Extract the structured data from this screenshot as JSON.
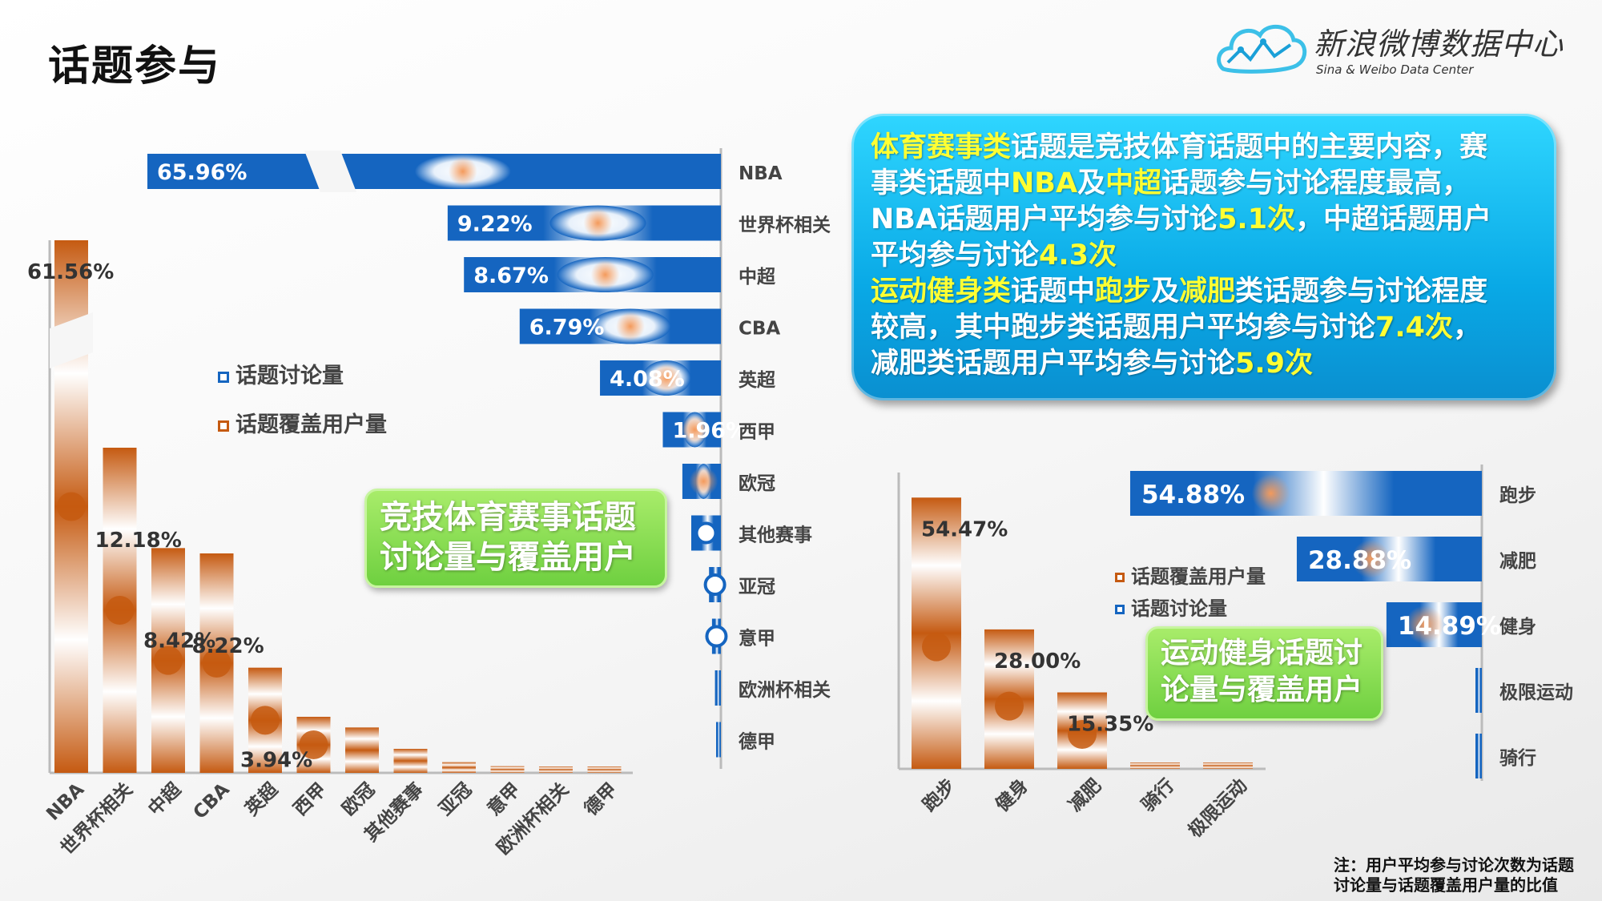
{
  "header": {
    "title": "话题参与"
  },
  "logo": {
    "main": "新浪微博数据中心",
    "sub": "Sina & Weibo Data Center"
  },
  "info_box": {
    "lines": [
      [
        {
          "t": "体育赛事类",
          "hl": true
        },
        {
          "t": "话题是竞技体育话题中的主要内容，赛",
          "hl": false
        }
      ],
      [
        {
          "t": "事类话题中",
          "hl": false
        },
        {
          "t": "NBA",
          "hl": true
        },
        {
          "t": "及",
          "hl": false
        },
        {
          "t": "中超",
          "hl": true
        },
        {
          "t": "话题参与讨论程度最高，",
          "hl": false
        }
      ],
      [
        {
          "t": "NBA话题用户平均参与讨论",
          "hl": false
        },
        {
          "t": "5.1次",
          "hl": true
        },
        {
          "t": "，中超话题用户",
          "hl": false
        }
      ],
      [
        {
          "t": "平均参与讨论",
          "hl": false
        },
        {
          "t": "4.3次",
          "hl": true
        }
      ],
      [
        {
          "t": "运动健身类",
          "hl": true
        },
        {
          "t": "话题中",
          "hl": false
        },
        {
          "t": "跑步",
          "hl": true
        },
        {
          "t": "及",
          "hl": false
        },
        {
          "t": "减肥",
          "hl": true
        },
        {
          "t": "类话题参与讨论程度",
          "hl": false
        }
      ],
      [
        {
          "t": "较高，其中跑步类话题用户平均参与讨论",
          "hl": false
        },
        {
          "t": "7.4次",
          "hl": true
        },
        {
          "t": "，",
          "hl": false
        }
      ],
      [
        {
          "t": "减肥类话题用户平均参与讨论",
          "hl": false
        },
        {
          "t": "5.9次",
          "hl": true
        }
      ]
    ]
  },
  "labels": {
    "left_box": [
      "竞技体育赛事话题",
      "讨论量与覆盖用户"
    ],
    "right_box": [
      "运动健身话题讨",
      "论量与覆盖用户"
    ]
  },
  "legend_left": {
    "discussion": "话题讨论量",
    "coverage": "话题覆盖用户量"
  },
  "legend_right": {
    "coverage": "话题覆盖用户量",
    "discussion": "话题讨论量"
  },
  "colors": {
    "discussion": "#1565c0",
    "coverage": "#c55a11",
    "highlight": "#ffff33"
  },
  "note": [
    "注：用户平均参与讨论次数为话题",
    "讨论量与话题覆盖用户量的比值"
  ],
  "chart_data": [
    {
      "type": "bar",
      "orientation": "horizontal",
      "series_name": "话题讨论量",
      "categories": [
        "NBA",
        "世界杯相关",
        "中超",
        "CBA",
        "英超",
        "西甲",
        "欧冠",
        "其他赛事",
        "亚冠",
        "意甲",
        "欧洲杯相关",
        "德甲"
      ],
      "values": [
        65.96,
        9.22,
        8.67,
        6.79,
        4.08,
        1.96,
        1.3,
        1.0,
        0.4,
        0.3,
        0.2,
        0.15
      ],
      "data_labels": [
        "65.96%",
        "9.22%",
        "8.67%",
        "6.79%",
        "4.08%",
        "1.96%",
        "",
        "",
        "",
        "",
        "",
        ""
      ],
      "axis_break": true
    },
    {
      "type": "bar",
      "orientation": "vertical",
      "series_name": "话题覆盖用户量",
      "categories": [
        "NBA",
        "世界杯相关",
        "中超",
        "CBA",
        "英超",
        "西甲",
        "欧冠",
        "其他赛事",
        "亚冠",
        "意甲",
        "欧洲杯相关",
        "德甲"
      ],
      "values": [
        61.56,
        12.18,
        8.42,
        8.22,
        3.94,
        2.1,
        1.7,
        0.9,
        0.4,
        0.25,
        0.2,
        0.15
      ],
      "data_labels": [
        "61.56%",
        "12.18%",
        "8.42%",
        "8.22%",
        "3.94%",
        "",
        "",
        "",
        "",
        "",
        "",
        ""
      ],
      "axis_break": true
    },
    {
      "type": "bar",
      "orientation": "horizontal",
      "series_name": "话题讨论量",
      "categories": [
        "跑步",
        "减肥",
        "健身",
        "极限运动",
        "骑行"
      ],
      "values": [
        54.88,
        28.88,
        14.89,
        0.5,
        0.4
      ],
      "data_labels": [
        "54.88%",
        "28.88%",
        "14.89%",
        "",
        ""
      ]
    },
    {
      "type": "bar",
      "orientation": "vertical",
      "series_name": "话题覆盖用户量",
      "categories": [
        "跑步",
        "健身",
        "减肥",
        "骑行",
        "极限运动"
      ],
      "values": [
        54.47,
        28.0,
        15.35,
        0.5,
        0.5
      ],
      "data_labels": [
        "54.47%",
        "28.00%",
        "15.35%",
        "",
        ""
      ]
    }
  ]
}
